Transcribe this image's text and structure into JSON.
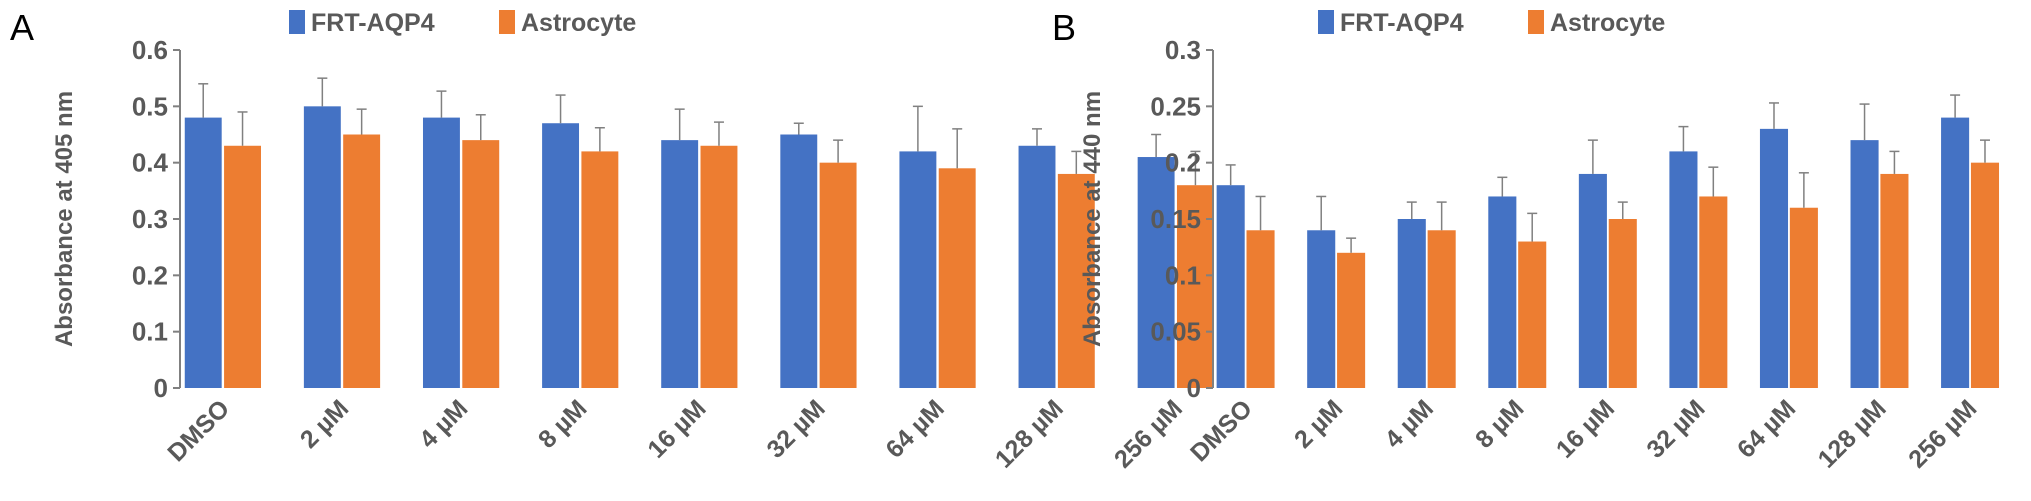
{
  "colors": {
    "frt": "#4472C4",
    "astro": "#ED7D31",
    "axis": "#808080",
    "text": "#595959"
  },
  "chart_data": [
    {
      "panel": "A",
      "type": "bar",
      "ylabel": "Absorbance at 405 nm",
      "ylim": [
        0,
        0.6
      ],
      "yticks": [
        "0",
        "0.1",
        "0.2",
        "0.3",
        "0.4",
        "0.5",
        "0.6"
      ],
      "ytick_values": [
        0,
        0.1,
        0.2,
        0.3,
        0.4,
        0.5,
        0.6
      ],
      "categories": [
        "DMSO",
        "2 µM",
        "4 µM",
        "8 µM",
        "16 µM",
        "32 µM",
        "64 µM",
        "128 µM",
        "256 µM"
      ],
      "legend_position": "top-center",
      "series": [
        {
          "name": "FRT-AQP4",
          "values": [
            0.48,
            0.5,
            0.48,
            0.47,
            0.44,
            0.45,
            0.42,
            0.43,
            0.41
          ],
          "error": [
            0.06,
            0.05,
            0.047,
            0.05,
            0.055,
            0.02,
            0.08,
            0.03,
            0.04
          ]
        },
        {
          "name": "Astrocyte",
          "values": [
            0.43,
            0.45,
            0.44,
            0.42,
            0.43,
            0.4,
            0.39,
            0.38,
            0.36
          ],
          "error": [
            0.06,
            0.045,
            0.045,
            0.042,
            0.042,
            0.04,
            0.07,
            0.04,
            0.06
          ]
        }
      ]
    },
    {
      "panel": "B",
      "type": "bar",
      "ylabel": "Absorbance at 440 nm",
      "ylim": [
        0,
        0.3
      ],
      "yticks": [
        "0",
        "0.05",
        "0.1",
        "0.15",
        "0.2",
        "0.25",
        "0.3"
      ],
      "ytick_values": [
        0,
        0.05,
        0.1,
        0.15,
        0.2,
        0.25,
        0.3
      ],
      "categories": [
        "DMSO",
        "2 µM",
        "4 µM",
        "8 µM",
        "16 µM",
        "32 µM",
        "64 µM",
        "128 µM",
        "256 µM"
      ],
      "legend_position": "top-center",
      "series": [
        {
          "name": "FRT-AQP4",
          "values": [
            0.18,
            0.14,
            0.15,
            0.17,
            0.19,
            0.21,
            0.23,
            0.22,
            0.24
          ],
          "error": [
            0.018,
            0.03,
            0.015,
            0.017,
            0.03,
            0.022,
            0.023,
            0.032,
            0.02
          ]
        },
        {
          "name": "Astrocyte",
          "values": [
            0.14,
            0.12,
            0.14,
            0.13,
            0.15,
            0.17,
            0.16,
            0.19,
            0.2
          ],
          "error": [
            0.03,
            0.013,
            0.025,
            0.025,
            0.015,
            0.026,
            0.031,
            0.02,
            0.02
          ]
        }
      ]
    }
  ]
}
